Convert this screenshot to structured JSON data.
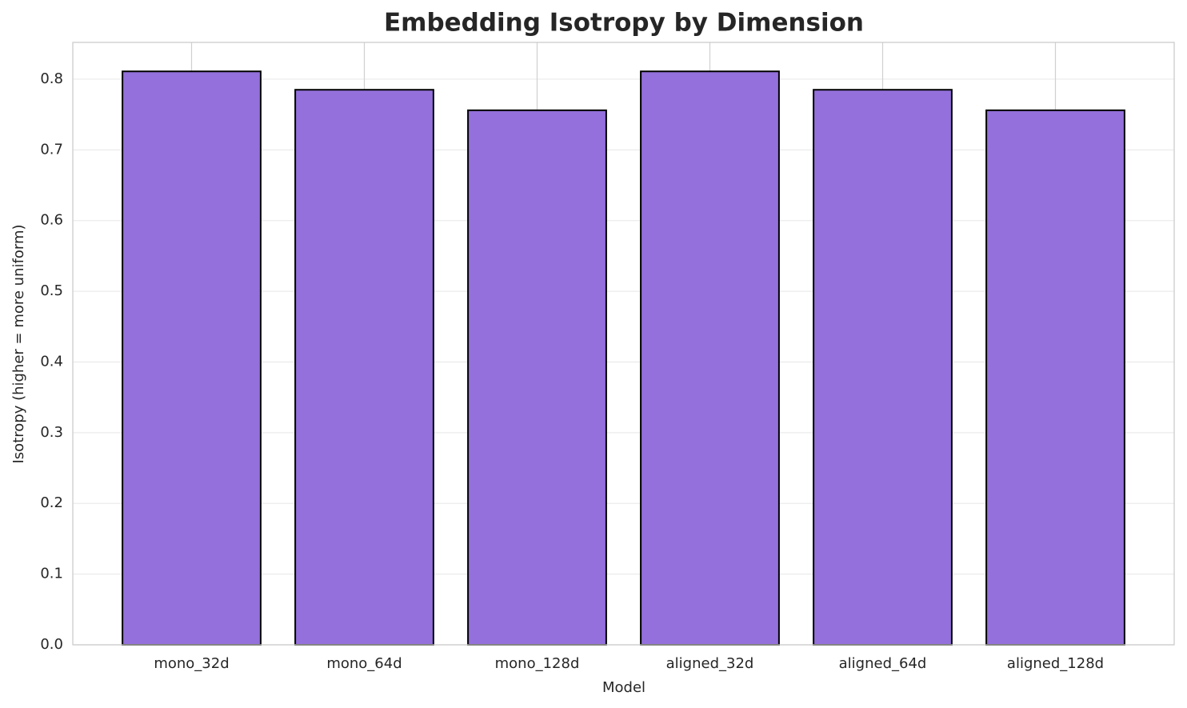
{
  "chart_data": {
    "type": "bar",
    "title": "Embedding Isotropy by Dimension",
    "x_label": "Model",
    "y_label": "Isotropy (higher = more uniform)",
    "categories": [
      "mono_32d",
      "mono_64d",
      "mono_128d",
      "aligned_32d",
      "aligned_64d",
      "aligned_128d"
    ],
    "values": [
      0.811,
      0.785,
      0.756,
      0.811,
      0.785,
      0.756
    ],
    "color": "#9370db",
    "edge_color": "#000000",
    "ylim": [
      0,
      0.852
    ],
    "yticks": [
      0.0,
      0.1,
      0.2,
      0.3,
      0.4,
      0.5,
      0.6,
      0.7,
      0.8
    ],
    "grid": true
  }
}
